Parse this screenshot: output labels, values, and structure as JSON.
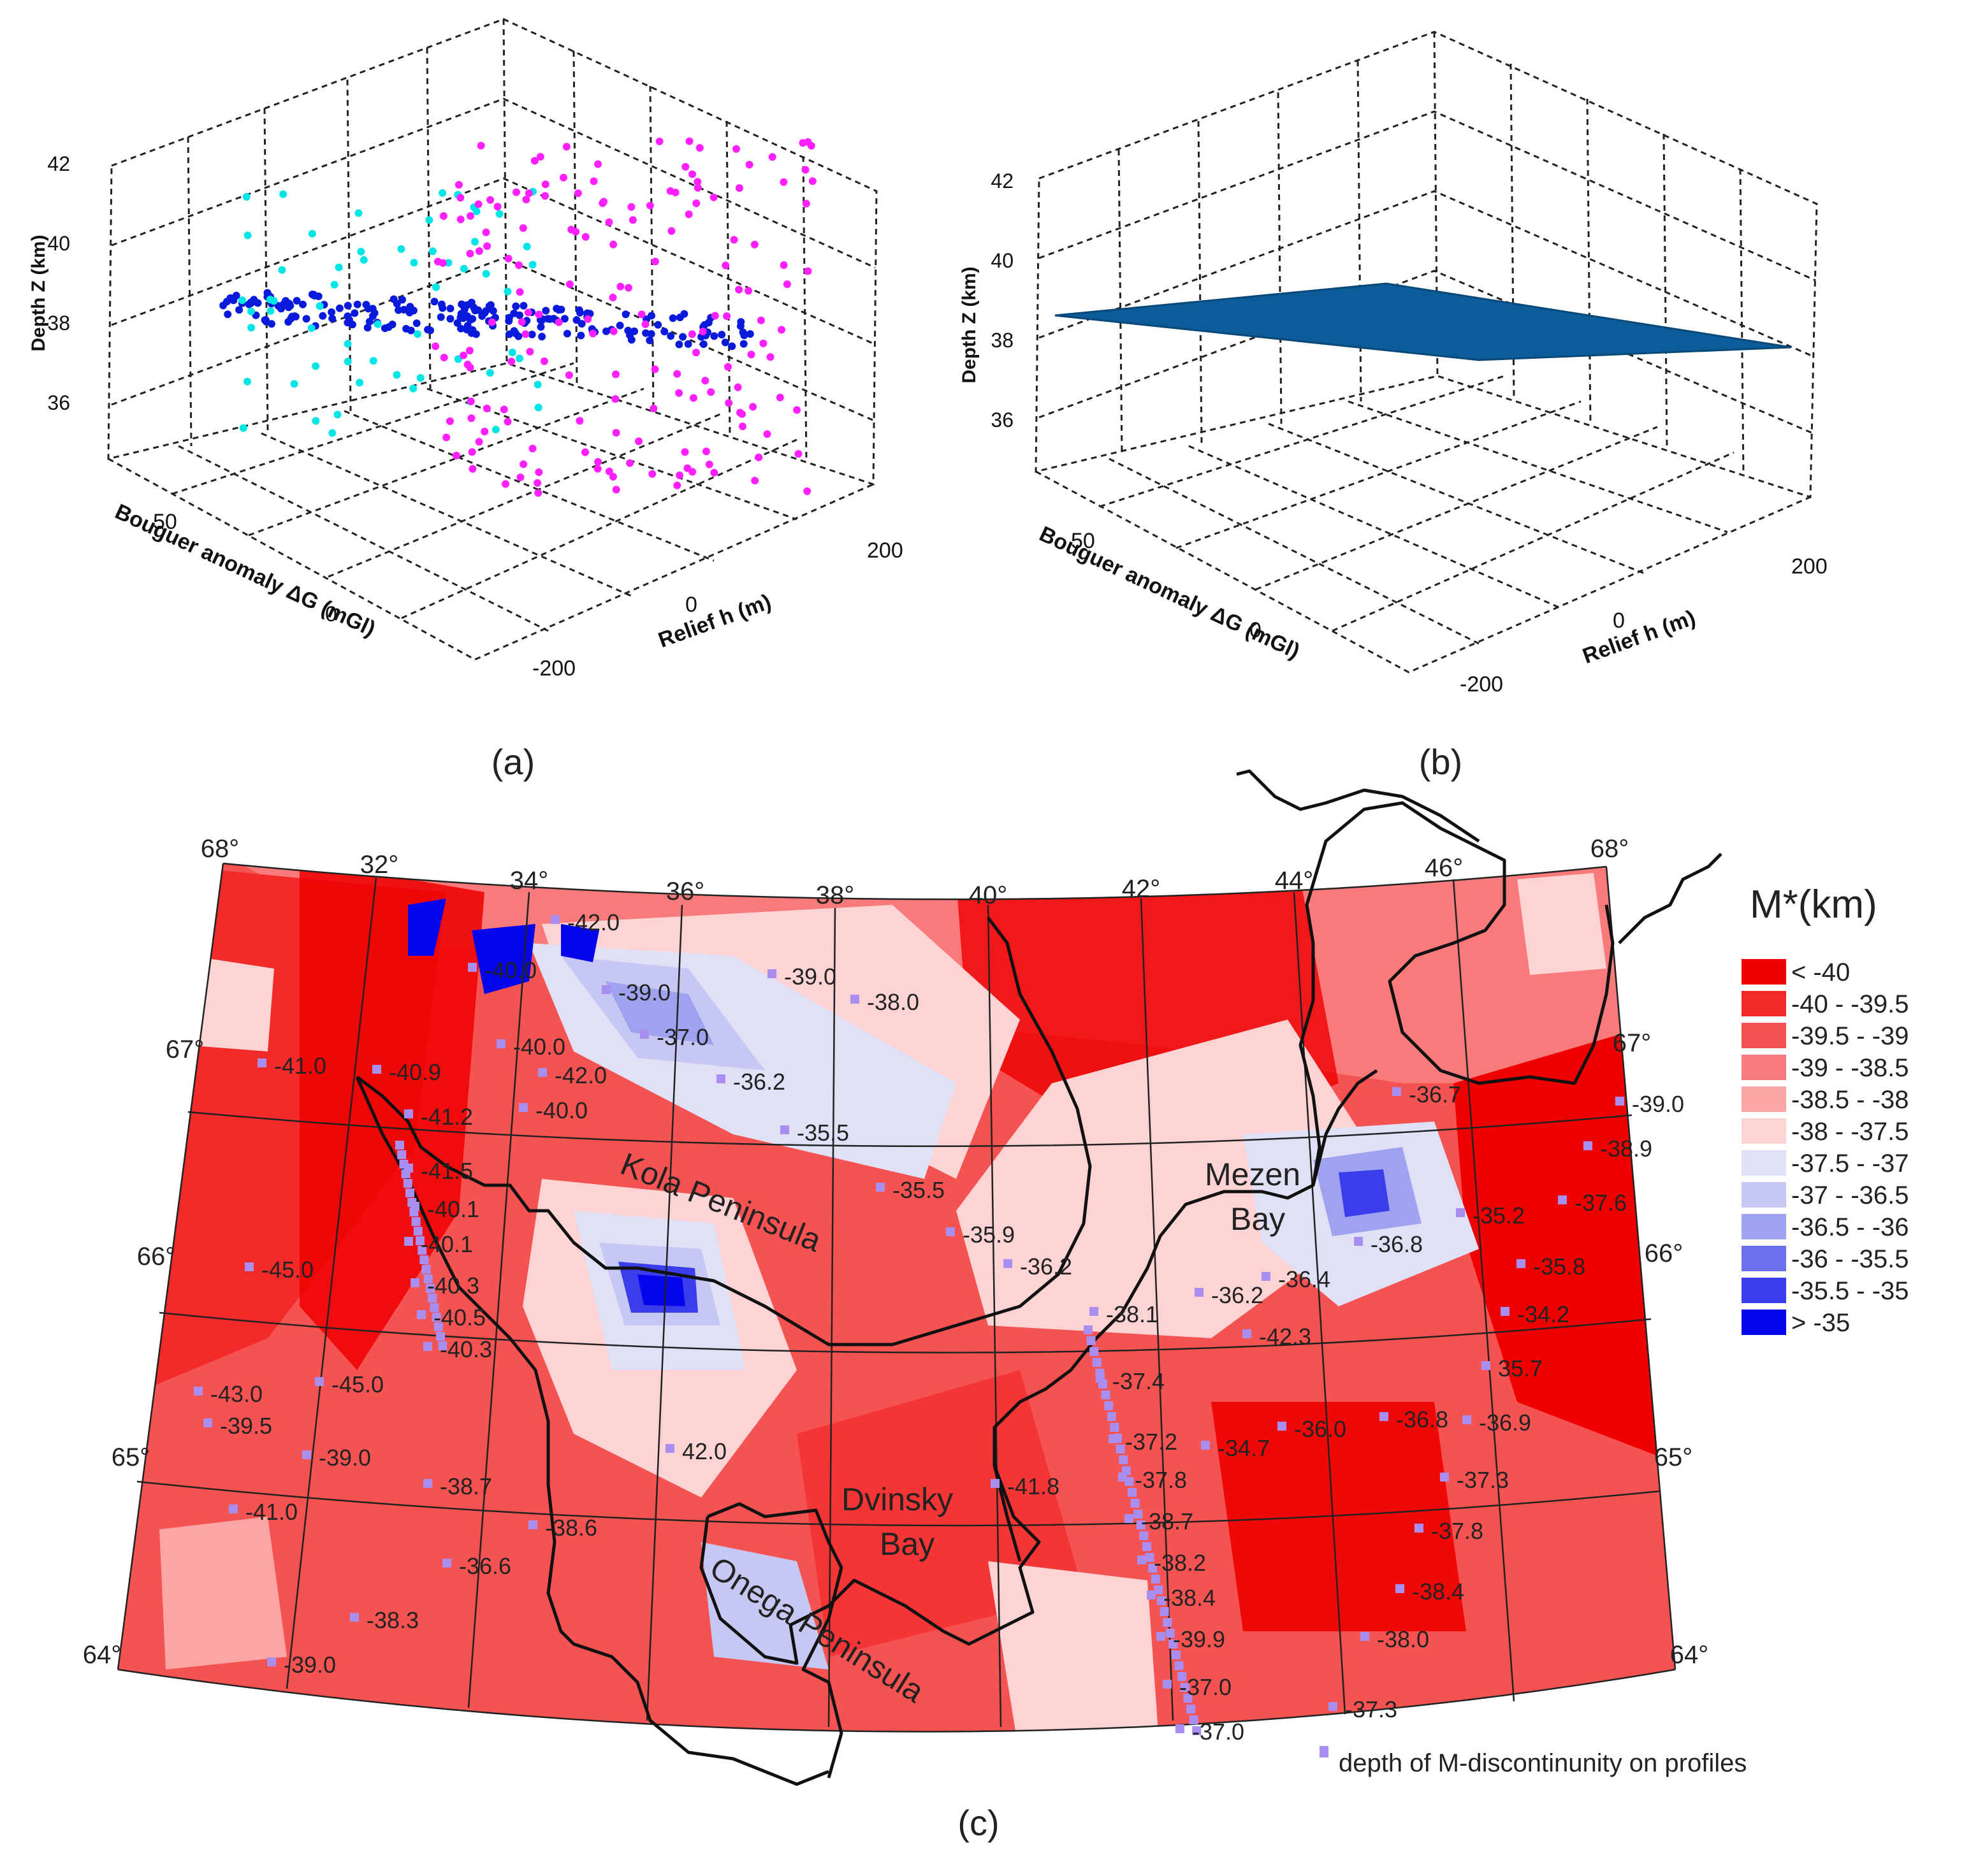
{
  "panels": {
    "a": {
      "label": "(a)",
      "z_label": "Depth Z (km)",
      "x_label": "Bouguer anomaly ΔG (mGl)",
      "y_label": "Relief h (m)",
      "z_ticks": [
        "42",
        "40",
        "38",
        "36"
      ],
      "x_ticks": [
        "50",
        "0"
      ],
      "y_ticks": [
        "200",
        "0",
        "-200"
      ]
    },
    "b": {
      "label": "(b)",
      "z_label": "Depth Z (km)",
      "x_label": "Bouguer anomaly ΔG (mGl)",
      "y_label": "Relief h (m)",
      "z_ticks": [
        "42",
        "40",
        "38",
        "36"
      ],
      "x_ticks": [
        "50",
        "0"
      ],
      "y_ticks": [
        "200",
        "0",
        "-200"
      ]
    },
    "c": {
      "label": "(c)"
    }
  },
  "colors": {
    "scatter": [
      "#00e5e5",
      "#0a1adb",
      "#ff1fff"
    ],
    "plane": "#0b5c99",
    "profile_marker": "#a98ef0",
    "coast": "#111111"
  },
  "map": {
    "legend_title": "M*(km)",
    "legend": [
      {
        "label": "< -40",
        "color": "#ee0000"
      },
      {
        "label": "-40 - -39.5",
        "color": "#f22a2a"
      },
      {
        "label": "-39.5 - -39",
        "color": "#f55252"
      },
      {
        "label": "-39 - -38.5",
        "color": "#f87a7a"
      },
      {
        "label": "-38.5 - -38",
        "color": "#fba5a5"
      },
      {
        "label": "-38 - -37.5",
        "color": "#fdd3d3"
      },
      {
        "label": "-37.5 - -37",
        "color": "#e0e1f7"
      },
      {
        "label": "-37 - -36.5",
        "color": "#c6c8f3"
      },
      {
        "label": "-36.5 - -36",
        "color": "#9fa2ee"
      },
      {
        "label": "-36 - -35.5",
        "color": "#6c70ea"
      },
      {
        "label": "-35.5 - -35",
        "color": "#3a3eea"
      },
      {
        "label": "> -35",
        "color": "#0505ec"
      }
    ],
    "footnote": "depth of M-discontinunity on profiles",
    "lon_labels": [
      "32°",
      "34°",
      "36°",
      "38°",
      "40°",
      "42°",
      "44°",
      "46°"
    ],
    "lat_labels_left": [
      "68°",
      "67°",
      "66°",
      "65°",
      "64°"
    ],
    "lat_labels_right": [
      "68°",
      "67°",
      "66°",
      "65°",
      "64°"
    ],
    "places": [
      "Kola Peninsula",
      "Mezen",
      "Bay",
      "Dvinsky",
      "Bay",
      "Onega Peninsula"
    ],
    "profile_values": [
      "-42.0",
      "-40.0",
      "-39.0",
      "-39.0",
      "-38.0",
      "-42.0",
      "-40.0",
      "-37.0",
      "-41.0",
      "-40.9",
      "-36.2",
      "-41.2",
      "-40.0",
      "-35.5",
      "-41.5",
      "-35.5",
      "-40.1",
      "-35.9",
      "-40.1",
      "-36.2",
      "-45.0",
      "-40.3",
      "-40.5",
      "-45.0",
      "-40.3",
      "-43.0",
      "-39.5",
      "-39.0",
      "42.0",
      "-38.7",
      "-41.0",
      "-38.6",
      "-36.6",
      "-38.3",
      "-39.0",
      "-36.7",
      "-39.0",
      "-38.9",
      "-37.6",
      "-35.2",
      "-36.8",
      "-35.8",
      "-36.4",
      "-36.2",
      "-34.2",
      "-38.1",
      "-42.3",
      "35.7",
      "-37.4",
      "-36.8",
      "-36.9",
      "-37.2",
      "-34.7",
      "-36.0",
      "-37.8",
      "-37.3",
      "-41.8",
      "-38.7",
      "-37.8",
      "-38.2",
      "-38.4",
      "-38.4",
      "-39.9",
      "-38.0",
      "-37.0",
      "-37.3",
      "-37.0"
    ]
  }
}
